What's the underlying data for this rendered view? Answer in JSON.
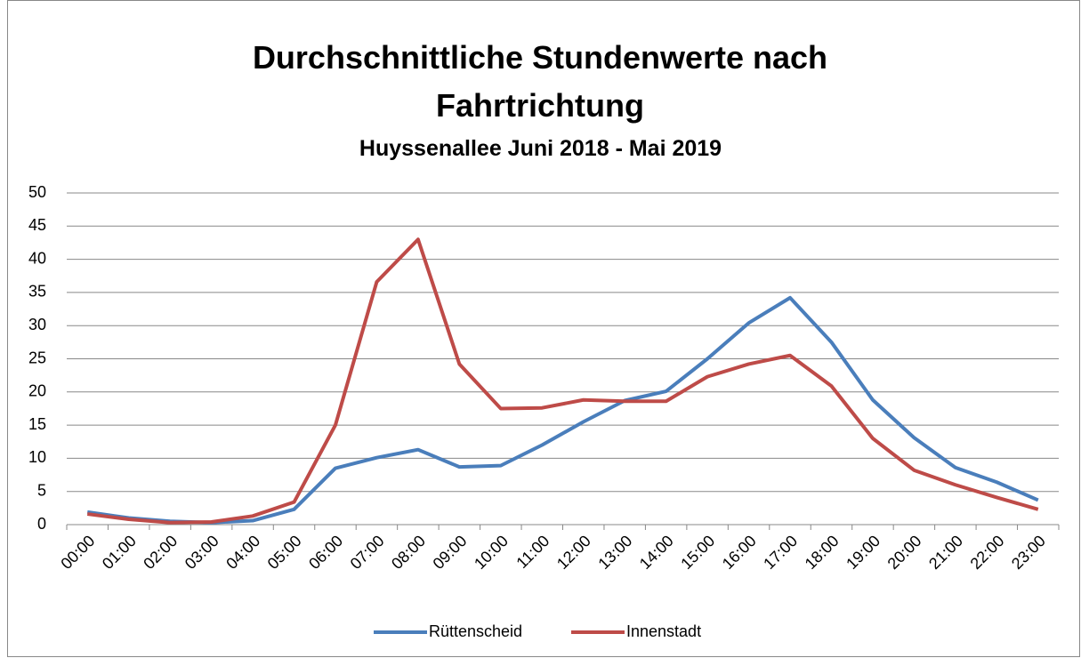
{
  "chart_data": {
    "type": "line",
    "title": "Durchschnittliche Stundenwerte nach Fahrtrichtung",
    "subtitle": "Huyssenallee Juni 2018 - Mai 2019",
    "categories": [
      "00:00",
      "01:00",
      "02:00",
      "03:00",
      "04:00",
      "05:00",
      "06:00",
      "07:00",
      "08:00",
      "09:00",
      "10:00",
      "11:00",
      "12:00",
      "13:00",
      "14:00",
      "15:00",
      "16:00",
      "17:00",
      "18:00",
      "19:00",
      "20:00",
      "21:00",
      "22:00",
      "23:00"
    ],
    "series": [
      {
        "name": "Rüttenscheid",
        "color": "#4a7ebb",
        "values": [
          1.9,
          1.0,
          0.5,
          0.3,
          0.6,
          2.3,
          8.5,
          10.1,
          11.3,
          8.7,
          8.9,
          12.0,
          15.5,
          18.7,
          20.1,
          25.0,
          30.4,
          34.2,
          27.5,
          18.8,
          13.1,
          8.6,
          6.4,
          3.7
        ]
      },
      {
        "name": "Innenstadt",
        "color": "#be4b48",
        "values": [
          1.6,
          0.8,
          0.3,
          0.4,
          1.3,
          3.4,
          15.0,
          36.6,
          43.0,
          24.2,
          17.5,
          17.6,
          18.8,
          18.6,
          18.6,
          22.3,
          24.2,
          25.5,
          20.9,
          13.0,
          8.2,
          6.0,
          4.1,
          2.3
        ]
      }
    ],
    "ylim": [
      0,
      50
    ],
    "yticks": [
      0,
      5,
      10,
      15,
      20,
      25,
      30,
      35,
      40,
      45,
      50
    ],
    "grid": true,
    "legend": "bottom"
  }
}
